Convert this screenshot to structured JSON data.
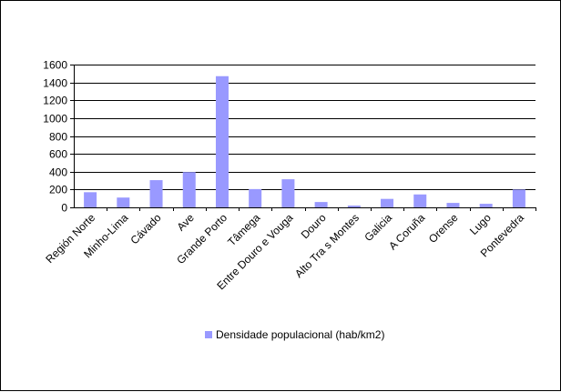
{
  "chart_data": {
    "type": "bar",
    "title": "",
    "xlabel": "",
    "ylabel": "",
    "ylim": [
      0,
      1600
    ],
    "yticks": [
      0,
      200,
      400,
      600,
      800,
      1000,
      1200,
      1400,
      1600
    ],
    "ytick_labels": [
      "0",
      "200",
      "400",
      "600",
      "800",
      "1000",
      "1200",
      "1400",
      "1600"
    ],
    "grid": true,
    "legend_position": "bottom",
    "categories": [
      "Región Norte",
      "Minho-Lima",
      "Cávado",
      "Ave",
      "Grande Porto",
      "Tâmega",
      "Entre Douro e Vouga",
      "Douro",
      "Alto Tra s Montes",
      "Galicia",
      "A Coruña",
      "Orense",
      "Lugo",
      "Pontevedra"
    ],
    "series": [
      {
        "name": "Densidade populacional (hab/km2)",
        "color": "#9999ff",
        "values": [
          170,
          110,
          305,
          395,
          1470,
          205,
          315,
          60,
          20,
          95,
          145,
          50,
          40,
          200
        ]
      }
    ]
  }
}
